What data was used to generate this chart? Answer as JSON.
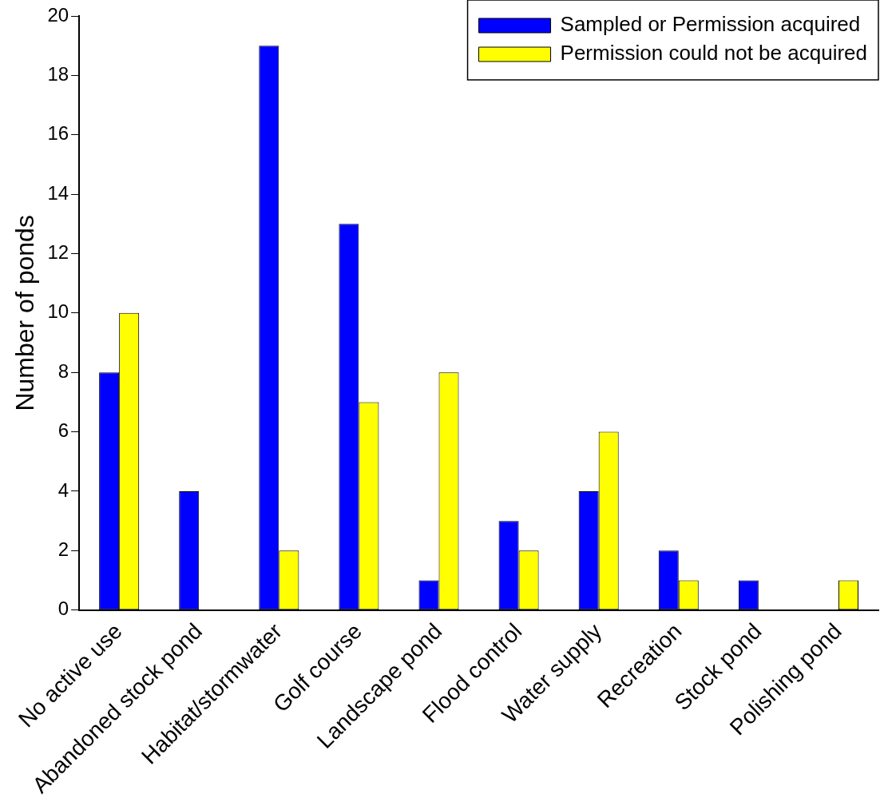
{
  "chart_data": {
    "type": "bar",
    "ylabel": "Number of ponds",
    "categories": [
      "No active use",
      "Abandoned stock pond",
      "Habitat/stormwater",
      "Golf course",
      "Landscape pond",
      "Flood control",
      "Water supply",
      "Recreation",
      "Stock pond",
      "Polishing pond"
    ],
    "series": [
      {
        "name": "Sampled or Permission acquired",
        "color": "#0000ff",
        "values": [
          8,
          4,
          19,
          13,
          1,
          3,
          4,
          2,
          1,
          0
        ]
      },
      {
        "name": "Permission could not be acquired",
        "color": "#ffff00",
        "values": [
          10,
          0,
          2,
          7,
          8,
          2,
          6,
          1,
          0,
          1
        ]
      }
    ],
    "ylim": [
      0,
      20
    ],
    "yticks": [
      0,
      2,
      4,
      6,
      8,
      10,
      12,
      14,
      16,
      18,
      20
    ],
    "grid": false,
    "legend": "top right"
  }
}
